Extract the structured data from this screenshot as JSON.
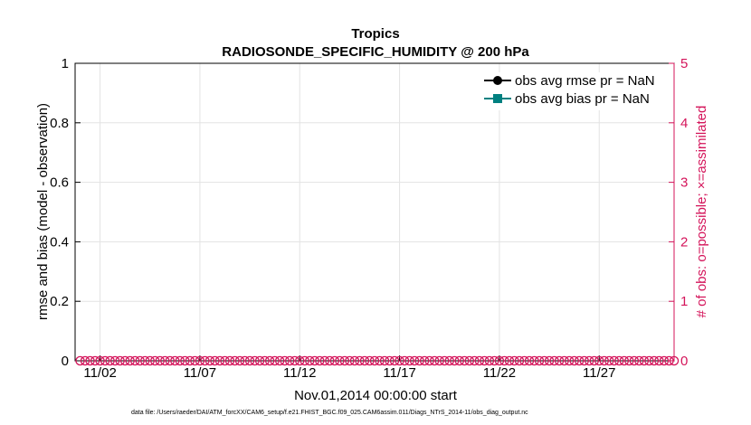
{
  "chart_data": {
    "type": "line",
    "title": "Tropics",
    "subtitle": "RADIOSONDE_SPECIFIC_HUMIDITY @ 200 hPa",
    "xlabel": "Nov.01,2014 00:00:00 start",
    "ylabel_left": "rmse and bias (model - observation)",
    "ylabel_right": "# of obs: o=possible; ×=assimilated",
    "ylim_left": [
      0,
      1
    ],
    "ylim_right": [
      0,
      5
    ],
    "y_ticks_left": [
      "0",
      "0.2",
      "0.4",
      "0.6",
      "0.8",
      "1"
    ],
    "y_ticks_right": [
      "0",
      "1",
      "2",
      "3",
      "4",
      "5"
    ],
    "x_ticks": [
      "11/02",
      "11/07",
      "11/12",
      "11/17",
      "11/22",
      "11/27"
    ],
    "x_tick_days": [
      2,
      7,
      12,
      17,
      22,
      27
    ],
    "xlim_days": [
      0.75,
      30.75
    ],
    "grid": true,
    "legend_placement": "top-right",
    "series": [
      {
        "name": "obs avg rmse pr = NaN",
        "color": "#000000",
        "marker": "circle",
        "values": []
      },
      {
        "name": "obs avg bias pr = NaN",
        "color": "#008080",
        "marker": "square",
        "values": []
      },
      {
        "color": "#d4145a",
        "marker": "circle-open",
        "x_days": [
          1,
          1.25,
          1.5,
          1.75,
          2,
          2.25,
          2.5,
          2.75,
          3,
          3.25,
          3.5,
          3.75,
          4,
          4.25,
          4.5,
          4.75,
          5,
          5.25,
          5.5,
          5.75,
          6,
          6.25,
          6.5,
          6.75,
          7,
          7.25,
          7.5,
          7.75,
          8,
          8.25,
          8.5,
          8.75,
          9,
          9.25,
          9.5,
          9.75,
          10,
          10.25,
          10.5,
          10.75,
          11,
          11.25,
          11.5,
          11.75,
          12,
          12.25,
          12.5,
          12.75,
          13,
          13.25,
          13.5,
          13.75,
          14,
          14.25,
          14.5,
          14.75,
          15,
          15.25,
          15.5,
          15.75,
          16,
          16.25,
          16.5,
          16.75,
          17,
          17.25,
          17.5,
          17.75,
          18,
          18.25,
          18.5,
          18.75,
          19,
          19.25,
          19.5,
          19.75,
          20,
          20.25,
          20.5,
          20.75,
          21,
          21.25,
          21.5,
          21.75,
          22,
          22.25,
          22.5,
          22.75,
          23,
          23.25,
          23.5,
          23.75,
          24,
          24.25,
          24.5,
          24.75,
          25,
          25.25,
          25.5,
          25.75,
          26,
          26.25,
          26.5,
          26.75,
          27,
          27.25,
          27.5,
          27.75,
          28,
          28.25,
          28.5,
          28.75,
          29,
          29.25,
          29.5,
          29.75,
          30,
          30.25,
          30.5,
          30.75
        ],
        "y": 0
      }
    ]
  },
  "footnote": "data file: /Users/raeder/DAI/ATM_forcXX/CAM6_setup/f.e21.FHIST_BGC.f09_025.CAM6assim.011/Diags_NTrS_2014-11/obs_diag_output.nc"
}
